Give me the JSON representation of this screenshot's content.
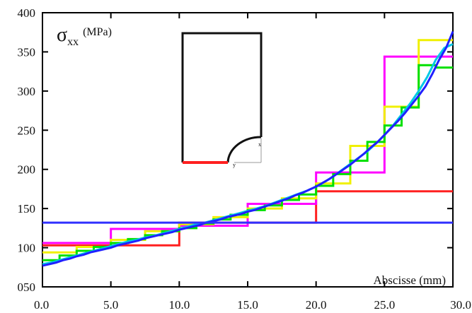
{
  "chart_data": {
    "type": "line",
    "title_symbol": "σ",
    "title_subscript": "xx",
    "title_unit": "(MPa)",
    "xlabel": "Abscisse (mm)",
    "ylabel": "",
    "xlim": [
      0,
      30
    ],
    "ylim": [
      50,
      400
    ],
    "x_ticks": [
      "0.0",
      "5.0",
      "10.0",
      "15.0",
      "20.0",
      "25.0",
      "30.0"
    ],
    "y_ticks": [
      "050",
      "100",
      "150",
      "200",
      "250",
      "300",
      "350",
      "400"
    ],
    "grid": false,
    "legend": "none",
    "series": [
      {
        "color": "#ff2020",
        "x": [
          0,
          10,
          10,
          20,
          20,
          30
        ],
        "y": [
          103,
          103,
          132,
          132,
          172,
          172
        ]
      },
      {
        "color": "#ff00ff",
        "x": [
          0,
          5,
          5,
          10,
          10,
          15,
          15,
          20,
          20,
          25,
          25,
          30
        ],
        "y": [
          106,
          106,
          124,
          124,
          128,
          128,
          156,
          156,
          196,
          196,
          344,
          344
        ]
      },
      {
        "color": "#f0f000",
        "x": [
          0,
          2.5,
          2.5,
          5,
          5,
          7.5,
          7.5,
          10,
          10,
          12.5,
          12.5,
          15,
          15,
          17.5,
          17.5,
          20,
          20,
          22.5,
          22.5,
          25,
          25,
          27.5,
          27.5,
          30
        ],
        "y": [
          94,
          94,
          101,
          101,
          110,
          110,
          121,
          121,
          130,
          130,
          139,
          139,
          150,
          150,
          163,
          163,
          182,
          182,
          230,
          230,
          280,
          280,
          365,
          365
        ]
      },
      {
        "color": "#00e000",
        "x": [
          0,
          1.25,
          1.25,
          2.5,
          2.5,
          3.75,
          3.75,
          5,
          5,
          6.25,
          6.25,
          7.5,
          7.5,
          8.75,
          8.75,
          10,
          10,
          11.25,
          11.25,
          12.5,
          12.5,
          13.75,
          13.75,
          15,
          15,
          16.25,
          16.25,
          17.5,
          17.5,
          18.75,
          18.75,
          20,
          20,
          21.25,
          21.25,
          22.5,
          22.5,
          23.75,
          23.75,
          25,
          25,
          26.25,
          26.25,
          27.5,
          27.5,
          28.75,
          28.75,
          30
        ],
        "y": [
          84,
          84,
          90,
          90,
          96,
          96,
          101,
          101,
          106,
          106,
          111,
          111,
          116,
          116,
          121,
          121,
          125,
          125,
          131,
          131,
          136,
          136,
          142,
          142,
          148,
          148,
          154,
          154,
          161,
          161,
          168,
          168,
          179,
          179,
          194,
          194,
          211,
          211,
          235,
          235,
          256,
          256,
          279,
          279,
          333,
          333,
          330,
          330
        ]
      },
      {
        "color": "#00c8e6",
        "x": [
          0,
          0.625,
          1.25,
          1.875,
          2.5,
          3.125,
          3.75,
          4.375,
          5,
          5.625,
          6.25,
          6.875,
          7.5,
          8.125,
          8.75,
          9.375,
          10,
          10.625,
          11.25,
          11.875,
          12.5,
          13.125,
          13.75,
          14.375,
          15,
          15.625,
          16.25,
          16.875,
          17.5,
          18.125,
          18.75,
          19.375,
          20,
          20.625,
          21.25,
          21.875,
          22.5,
          23.125,
          23.75,
          24.375,
          25,
          25.625,
          26.25,
          26.875,
          27.5,
          28.125,
          28.75,
          29.375,
          30
        ],
        "y": [
          79,
          81,
          84,
          87,
          90,
          93,
          96,
          99,
          102,
          105,
          108,
          110,
          113,
          115,
          118,
          121,
          124,
          127,
          130,
          132,
          135,
          138,
          141,
          144,
          147,
          150,
          153,
          157,
          161,
          165,
          169,
          173,
          178,
          184,
          191,
          199,
          207,
          215,
          223,
          233,
          244,
          256,
          270,
          284,
          300,
          318,
          340,
          355,
          360
        ]
      },
      {
        "color": "#2020ff",
        "x": [
          0,
          0.5,
          1,
          1.5,
          2,
          2.5,
          3,
          3.5,
          4,
          4.5,
          5,
          5.5,
          6,
          6.5,
          7,
          7.5,
          8,
          8.5,
          9,
          9.5,
          10,
          10.5,
          11,
          11.5,
          12,
          12.5,
          13,
          13.5,
          14,
          14.5,
          15,
          15.5,
          16,
          16.5,
          17,
          17.5,
          18,
          18.5,
          19,
          19.5,
          20,
          20.5,
          21,
          21.5,
          22,
          22.5,
          23,
          23.5,
          24,
          24.5,
          25,
          25.5,
          26,
          26.5,
          27,
          27.5,
          28,
          28.5,
          29,
          29.5,
          30
        ],
        "y": [
          77,
          79,
          81,
          84,
          86,
          89,
          91,
          94,
          96,
          98,
          100,
          103,
          105,
          107,
          109,
          112,
          114,
          116,
          118,
          120,
          123,
          125,
          127,
          129,
          132,
          134,
          136,
          139,
          141,
          143,
          146,
          148,
          151,
          154,
          157,
          160,
          163,
          167,
          170,
          174,
          178,
          183,
          188,
          194,
          200,
          206,
          213,
          220,
          228,
          235,
          244,
          253,
          262,
          272,
          283,
          294,
          306,
          322,
          340,
          355,
          376
        ]
      },
      {
        "color": "#3030ff",
        "x": [
          0,
          30
        ],
        "y": [
          132,
          132
        ]
      }
    ]
  },
  "inset": {
    "label_x": "x",
    "label_y": "y"
  }
}
